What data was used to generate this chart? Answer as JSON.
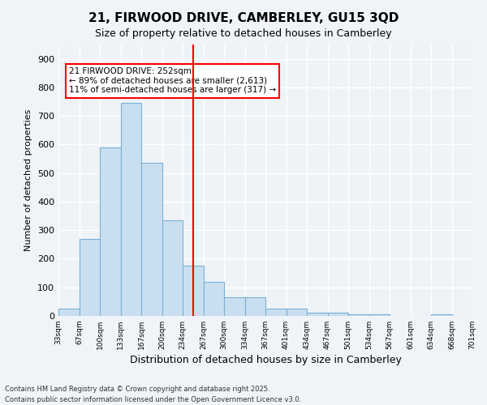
{
  "title_line1": "21, FIRWOOD DRIVE, CAMBERLEY, GU15 3QD",
  "title_line2": "Size of property relative to detached houses in Camberley",
  "xlabel": "Distribution of detached houses by size in Camberley",
  "ylabel": "Number of detached properties",
  "bins": [
    "33sqm",
    "67sqm",
    "100sqm",
    "133sqm",
    "167sqm",
    "200sqm",
    "234sqm",
    "267sqm",
    "300sqm",
    "334sqm",
    "367sqm",
    "401sqm",
    "434sqm",
    "467sqm",
    "501sqm",
    "534sqm",
    "567sqm",
    "601sqm",
    "634sqm",
    "668sqm",
    "701sqm"
  ],
  "bar_heights": [
    25,
    270,
    590,
    745,
    535,
    335,
    175,
    120,
    65,
    65,
    25,
    25,
    10,
    10,
    5,
    5,
    0,
    0,
    5,
    0
  ],
  "bar_color": "#c9dff0",
  "bar_edge_color": "#7ab0d4",
  "highlight_bin_index": 6,
  "vline_x": 6.5,
  "property_size": "252sqm",
  "annotation_text": "21 FIRWOOD DRIVE: 252sqm\n← 89% of detached houses are smaller (2,613)\n11% of semi-detached houses are larger (317) →",
  "ylim": [
    0,
    950
  ],
  "yticks": [
    0,
    100,
    200,
    300,
    400,
    500,
    600,
    700,
    800,
    900
  ],
  "background_color": "#eef3f8",
  "grid_color": "#ffffff",
  "footer_line1": "Contains HM Land Registry data © Crown copyright and database right 2025.",
  "footer_line2": "Contains public sector information licensed under the Open Government Licence v3.0."
}
